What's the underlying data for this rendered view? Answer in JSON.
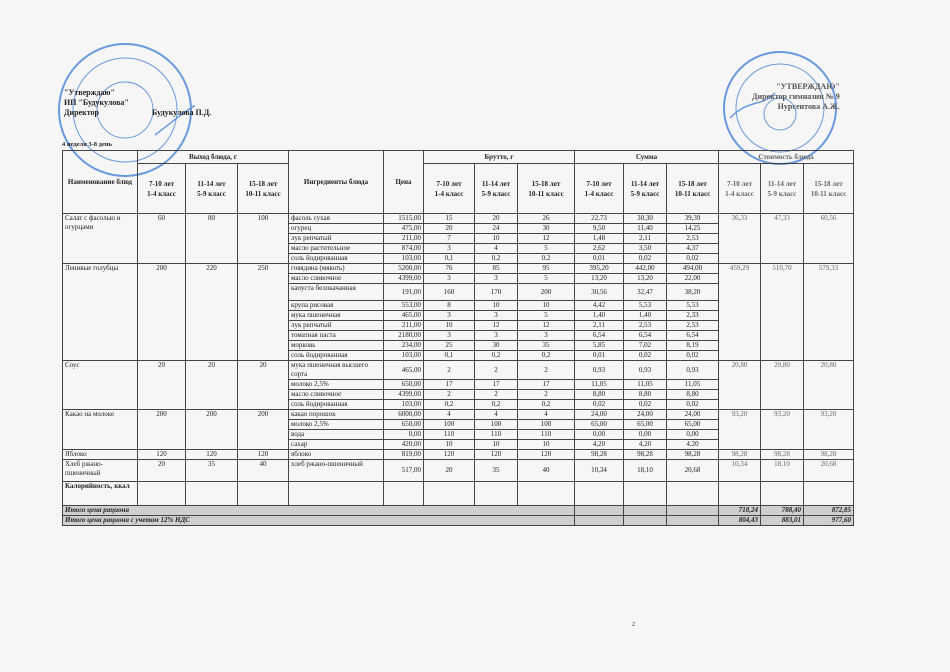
{
  "approval_left": {
    "line1": "\"Утверждаю\"",
    "line2": "ИП \"Будукулова\"",
    "role": "Директор",
    "name": "Будукулова П.Д."
  },
  "approval_right": {
    "line1": "\"УТВЕРЖДАЮ\"",
    "line2": "Директор гимназии № 9",
    "line3": "Нурсеитова А.Ж."
  },
  "stamp_left_text": "ЖЕКЕ КӘСІПКЕР СЕРИЯ 10915 №0099561 БУДУКУЛОВА П.Д. ИНДИВИДУАЛЬНЫЙ ПРЕДПРИНИМАТЕЛЬ ИИН 800405402416 РЕСПУБЛИКА КАЗАХСТАН ГОРОД АЛМАТЫ",
  "week_label": "4 неделя 3-8 день",
  "header": {
    "dish_name": "Наименование блюд",
    "yield": "Выход блюда, г",
    "ingredients": "Ингредиенты блюда",
    "price": "Цена",
    "brutto": "Брутто, г",
    "sum": "Сумма",
    "cost": "Стоимость блюда",
    "age_groups": [
      {
        "age": "7-10 лет",
        "grade": "1-4 класс"
      },
      {
        "age": "11-14 лет",
        "grade": "5-9 класс"
      },
      {
        "age": "15-18 лет",
        "grade": "10-11 класс"
      }
    ]
  },
  "dishes": [
    {
      "name": "Салат с фасолью и огурцами",
      "yield": [
        "60",
        "80",
        "100"
      ],
      "cost": [
        "36,33",
        "47,33",
        "60,56"
      ],
      "ingredients": [
        {
          "name": "фасоль сухая",
          "price": "1515,00",
          "brutto": [
            "15",
            "20",
            "26"
          ],
          "sum": [
            "22,73",
            "30,30",
            "39,39"
          ]
        },
        {
          "name": "огурец",
          "price": "475,00",
          "brutto": [
            "20",
            "24",
            "30"
          ],
          "sum": [
            "9,50",
            "11,40",
            "14,25"
          ]
        },
        {
          "name": "лук репчатый",
          "price": "211,00",
          "brutto": [
            "7",
            "10",
            "12"
          ],
          "sum": [
            "1,48",
            "2,11",
            "2,53"
          ]
        },
        {
          "name": "масло растительное",
          "price": "874,00",
          "brutto": [
            "3",
            "4",
            "5"
          ],
          "sum": [
            "2,62",
            "3,50",
            "4,37"
          ]
        },
        {
          "name": "соль йодированная",
          "price": "103,00",
          "brutto": [
            "0,1",
            "0,2",
            "0,2"
          ],
          "sum": [
            "0,01",
            "0,02",
            "0,02"
          ]
        }
      ]
    },
    {
      "name": "Ленивые голубцы",
      "yield": [
        "200",
        "220",
        "250"
      ],
      "cost": [
        "459,29",
        "510,70",
        "579,33"
      ],
      "ingredients": [
        {
          "name": "говядина (мякоть)",
          "price": "5200,00",
          "brutto": [
            "76",
            "85",
            "95"
          ],
          "sum": [
            "395,20",
            "442,00",
            "494,00"
          ]
        },
        {
          "name": "масло сливочное",
          "price": "4399,00",
          "brutto": [
            "3",
            "3",
            "5"
          ],
          "sum": [
            "13,20",
            "13,20",
            "22,00"
          ]
        },
        {
          "name": "капуста белокачанная",
          "price": "191,00",
          "brutto": [
            "160",
            "170",
            "200"
          ],
          "sum": [
            "30,56",
            "32,47",
            "38,20"
          ],
          "tall": true
        },
        {
          "name": "крупа рисовая",
          "price": "553,00",
          "brutto": [
            "8",
            "10",
            "10"
          ],
          "sum": [
            "4,42",
            "5,53",
            "5,53"
          ]
        },
        {
          "name": "мука пшеничная",
          "price": "465,00",
          "brutto": [
            "3",
            "3",
            "5"
          ],
          "sum": [
            "1,40",
            "1,40",
            "2,33"
          ]
        },
        {
          "name": "лук репчатый",
          "price": "211,00",
          "brutto": [
            "10",
            "12",
            "12"
          ],
          "sum": [
            "2,11",
            "2,53",
            "2,53"
          ]
        },
        {
          "name": "томатная паста",
          "price": "2180,00",
          "brutto": [
            "3",
            "3",
            "3"
          ],
          "sum": [
            "6,54",
            "6,54",
            "6,54"
          ]
        },
        {
          "name": "морковь",
          "price": "234,00",
          "brutto": [
            "25",
            "30",
            "35"
          ],
          "sum": [
            "5,85",
            "7,02",
            "8,19"
          ]
        },
        {
          "name": "соль йодированная",
          "price": "103,00",
          "brutto": [
            "0,1",
            "0,2",
            "0,2"
          ],
          "sum": [
            "0,01",
            "0,02",
            "0,02"
          ]
        }
      ]
    },
    {
      "name": "Соус",
      "yield": [
        "20",
        "20",
        "20"
      ],
      "cost": [
        "20,80",
        "20,80",
        "20,80"
      ],
      "ingredients": [
        {
          "name": "мука пшеничная высшего сорта",
          "price": "465,00",
          "brutto": [
            "2",
            "2",
            "2"
          ],
          "sum": [
            "0,93",
            "0,93",
            "0,93"
          ],
          "tall": true
        },
        {
          "name": "молоко 2,5%",
          "price": "650,00",
          "brutto": [
            "17",
            "17",
            "17"
          ],
          "sum": [
            "11,05",
            "11,05",
            "11,05"
          ]
        },
        {
          "name": "масло сливочное",
          "price": "4399,00",
          "brutto": [
            "2",
            "2",
            "2"
          ],
          "sum": [
            "8,80",
            "8,80",
            "8,80"
          ]
        },
        {
          "name": "соль йодированная",
          "price": "103,00",
          "brutto": [
            "0,2",
            "0,2",
            "0,2"
          ],
          "sum": [
            "0,02",
            "0,02",
            "0,02"
          ]
        }
      ]
    },
    {
      "name": "Какао на молоке",
      "yield": [
        "200",
        "200",
        "200"
      ],
      "cost": [
        "93,20",
        "93,20",
        "93,20"
      ],
      "ingredients": [
        {
          "name": "какао порошок",
          "price": "6000,00",
          "brutto": [
            "4",
            "4",
            "4"
          ],
          "sum": [
            "24,00",
            "24,00",
            "24,00"
          ]
        },
        {
          "name": "молоко 2,5%",
          "price": "650,00",
          "brutto": [
            "100",
            "100",
            "100"
          ],
          "sum": [
            "65,00",
            "65,00",
            "65,00"
          ]
        },
        {
          "name": "вода",
          "price": "0,00",
          "brutto": [
            "110",
            "110",
            "110"
          ],
          "sum": [
            "0,00",
            "0,00",
            "0,00"
          ]
        },
        {
          "name": "сахар",
          "price": "420,00",
          "brutto": [
            "10",
            "10",
            "10"
          ],
          "sum": [
            "4,20",
            "4,20",
            "4,20"
          ]
        }
      ]
    },
    {
      "name": "Яблоко",
      "yield": [
        "120",
        "120",
        "120"
      ],
      "cost": [
        "98,28",
        "98,28",
        "98,28"
      ],
      "ingredients": [
        {
          "name": "яблоко",
          "price": "819,00",
          "brutto": [
            "120",
            "120",
            "120"
          ],
          "sum": [
            "98,28",
            "98,28",
            "98,28"
          ]
        }
      ]
    },
    {
      "name": "Хлеб ржано-пшеничный",
      "yield": [
        "20",
        "35",
        "40"
      ],
      "cost": [
        "10,34",
        "18,10",
        "20,68"
      ],
      "ingredients": [
        {
          "name": "хлеб ржано-пшеничный",
          "price": "517,00",
          "brutto": [
            "20",
            "35",
            "40"
          ],
          "sum": [
            "10,34",
            "18,10",
            "20,68"
          ],
          "bread": true
        }
      ]
    }
  ],
  "calories_label": "Калорийность, ккал",
  "totals": [
    {
      "label": "Итого цена рациона",
      "values": [
        "718,24",
        "788,40",
        "872,85"
      ]
    },
    {
      "label": "Итого цена рациона с учетом 12% НДС",
      "values": [
        "804,43",
        "883,01",
        "977,60"
      ]
    }
  ],
  "page_number": "2",
  "colors": {
    "stamp": "#3a7bd5",
    "total_row": "#cfcfcf"
  }
}
